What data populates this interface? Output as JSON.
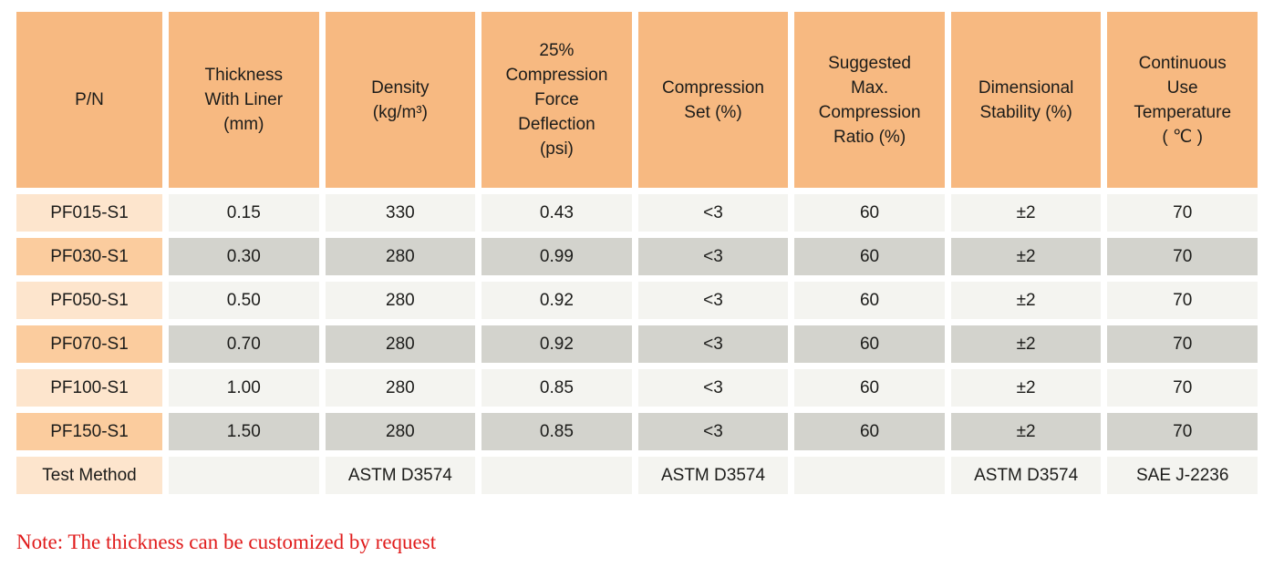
{
  "colors": {
    "header_bg": "#f7b981",
    "pn_light_bg": "#fde5cd",
    "pn_dark_bg": "#fbcc9e",
    "data_light_bg": "#f4f4f0",
    "data_dark_bg": "#d3d3cd",
    "note_red": "#e01b1b"
  },
  "table": {
    "headers": [
      {
        "lines": [
          "P/N"
        ]
      },
      {
        "lines": [
          "Thickness",
          "With Liner",
          "(mm)"
        ]
      },
      {
        "lines": [
          "Density",
          "(kg/m³)"
        ]
      },
      {
        "lines": [
          "25%",
          "Compression",
          "Force",
          "Deflection",
          "(psi)"
        ]
      },
      {
        "lines": [
          "Compression",
          "Set (%)"
        ]
      },
      {
        "lines": [
          "Suggested",
          "Max.",
          "Compression",
          "Ratio (%)"
        ]
      },
      {
        "lines": [
          "Dimensional",
          "Stability (%)"
        ]
      },
      {
        "lines": [
          "Continuous",
          "Use",
          "Temperature",
          "( ℃ )"
        ]
      }
    ],
    "rows": [
      {
        "pn": "PF015-S1",
        "cells": [
          "0.15",
          "330",
          "0.43",
          "<3",
          "60",
          "±2",
          "70"
        ]
      },
      {
        "pn": "PF030-S1",
        "cells": [
          "0.30",
          "280",
          "0.99",
          "<3",
          "60",
          "±2",
          "70"
        ]
      },
      {
        "pn": "PF050-S1",
        "cells": [
          "0.50",
          "280",
          "0.92",
          "<3",
          "60",
          "±2",
          "70"
        ]
      },
      {
        "pn": "PF070-S1",
        "cells": [
          "0.70",
          "280",
          "0.92",
          "<3",
          "60",
          "±2",
          "70"
        ]
      },
      {
        "pn": "PF100-S1",
        "cells": [
          "1.00",
          "280",
          "0.85",
          "<3",
          "60",
          "±2",
          "70"
        ]
      },
      {
        "pn": "PF150-S1",
        "cells": [
          "1.50",
          "280",
          "0.85",
          "<3",
          "60",
          "±2",
          "70"
        ]
      }
    ],
    "footer": {
      "label": "Test Method",
      "cells": [
        "",
        "ASTM D3574",
        "",
        "ASTM D3574",
        "",
        "ASTM D3574",
        "SAE J-2236"
      ]
    }
  },
  "note": {
    "text": "Note: The thickness can be customized by request"
  }
}
